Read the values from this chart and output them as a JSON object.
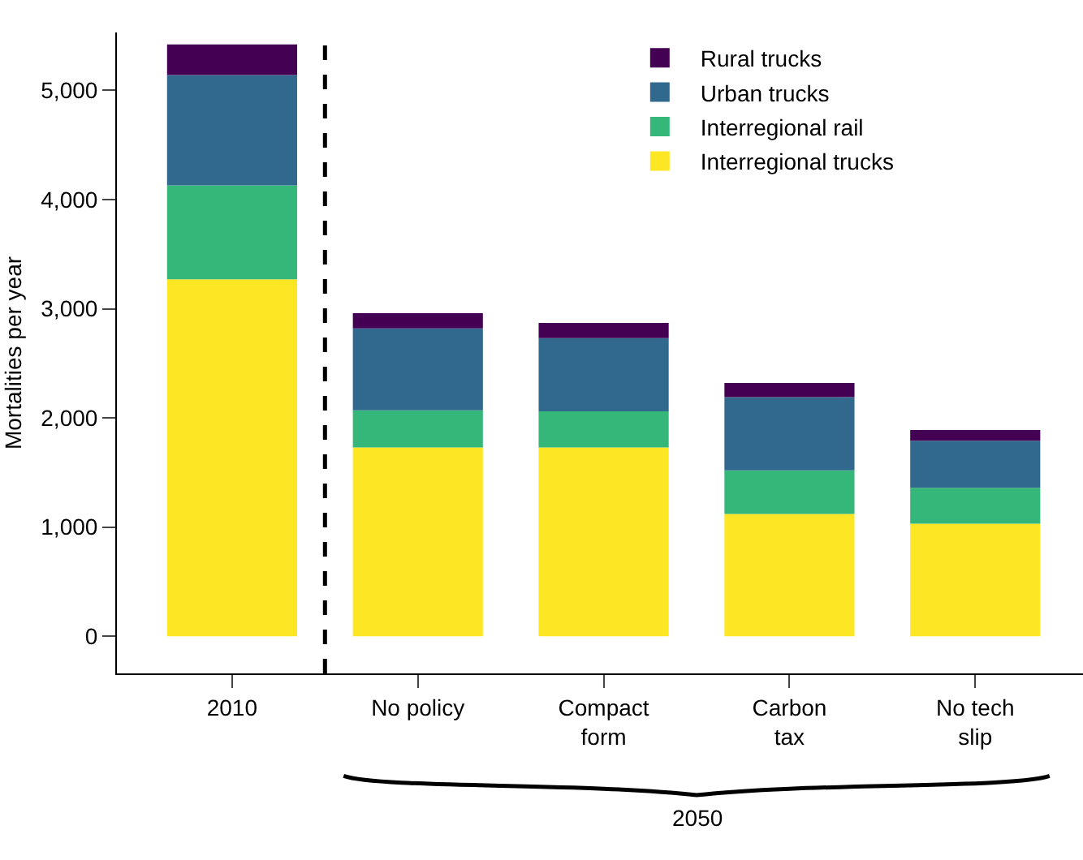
{
  "chart_data": {
    "type": "bar",
    "stacked": true,
    "ylabel": "Mortalities per year",
    "categories": [
      "2010",
      "No policy",
      "Compact\nform",
      "Carbon\ntax",
      "No tech\nslip"
    ],
    "series": [
      {
        "name": "Interregional trucks",
        "color": "#fde725",
        "values": [
          3270,
          1730,
          1730,
          1120,
          1030
        ]
      },
      {
        "name": "Interregional rail",
        "color": "#35b779",
        "values": [
          860,
          340,
          330,
          400,
          330
        ]
      },
      {
        "name": "Urban trucks",
        "color": "#31688e",
        "values": [
          1010,
          750,
          670,
          670,
          430
        ]
      },
      {
        "name": "Rural trucks",
        "color": "#440154",
        "values": [
          280,
          140,
          140,
          130,
          100
        ]
      }
    ],
    "ylim": [
      -340,
      5530
    ],
    "yticks": [
      {
        "value": 0,
        "label": "0"
      },
      {
        "value": 1000,
        "label": "1,000"
      },
      {
        "value": 2000,
        "label": "2,000"
      },
      {
        "value": 3000,
        "label": "3,000"
      },
      {
        "value": 4000,
        "label": "4,000"
      },
      {
        "value": 5000,
        "label": "5,000"
      }
    ],
    "annotations": [
      "2050"
    ],
    "legend": "top right"
  }
}
